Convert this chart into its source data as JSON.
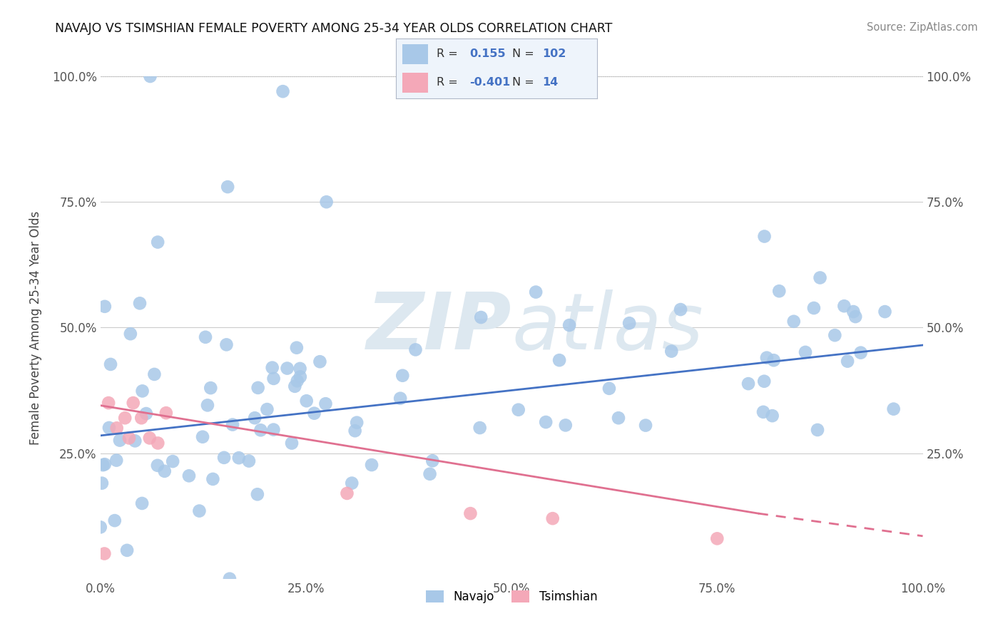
{
  "title": "NAVAJO VS TSIMSHIAN FEMALE POVERTY AMONG 25-34 YEAR OLDS CORRELATION CHART",
  "source": "Source: ZipAtlas.com",
  "ylabel": "Female Poverty Among 25-34 Year Olds",
  "navajo_R": 0.155,
  "navajo_N": 102,
  "tsimshian_R": -0.401,
  "tsimshian_N": 14,
  "navajo_color": "#a8c8e8",
  "tsimshian_color": "#f4a8b8",
  "navajo_line_color": "#4472c4",
  "tsimshian_line_color": "#e07090",
  "background_color": "#ffffff",
  "watermark_color": "#dde8f0",
  "xlim": [
    0.0,
    1.0
  ],
  "ylim": [
    0.0,
    1.0
  ],
  "xtick_labels": [
    "0.0%",
    "25.0%",
    "50.0%",
    "75.0%",
    "100.0%"
  ],
  "xtick_vals": [
    0.0,
    0.25,
    0.5,
    0.75,
    1.0
  ],
  "ytick_labels": [
    "25.0%",
    "50.0%",
    "75.0%",
    "100.0%"
  ],
  "ytick_vals": [
    0.25,
    0.5,
    0.75,
    1.0
  ],
  "navajo_line_x": [
    0.0,
    1.0
  ],
  "navajo_line_y": [
    0.285,
    0.465
  ],
  "tsimshian_line_x0": 0.0,
  "tsimshian_line_x_solid": 0.8,
  "tsimshian_line_x1": 1.0,
  "tsimshian_line_y0": 0.345,
  "tsimshian_line_y_solid_end": 0.13,
  "tsimshian_line_y1": 0.085,
  "legend_R1": "0.155",
  "legend_N1": "102",
  "legend_R2": "-0.401",
  "legend_N2": "14"
}
